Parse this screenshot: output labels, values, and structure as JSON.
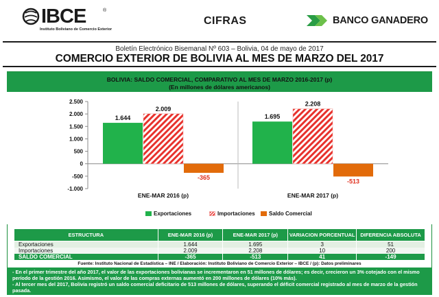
{
  "header": {
    "logo_text": "IBCE",
    "logo_reg": "®",
    "logo_subtitle": "Instituto Boliviano de Comercio Exterior",
    "section": "CIFRAS",
    "bank_name": "BANCO GANADERO"
  },
  "boletin": "Boletín Electrónico Bisemanal Nº 603 – Bolivia, 04 de mayo de 2017",
  "title": "COMERCIO EXTERIOR DE BOLIVIA AL MES DE MARZO DEL 2017",
  "chart_data": {
    "type": "bar",
    "title": "BOLIVIA: SALDO COMERCIAL, COMPARATIVO AL MES DE MARZO 2016-2017 (p)",
    "subtitle": "(En millones de dólares americanos)",
    "categories": [
      "ENE-MAR 2016 (p)",
      "ENE-MAR 2017 (p)"
    ],
    "series": [
      {
        "name": "Exportaciones",
        "values": [
          1644,
          1695
        ],
        "labels": [
          "1.644",
          "1.695"
        ],
        "color": "#21b24b"
      },
      {
        "name": "Importaciones",
        "values": [
          2009,
          2208
        ],
        "labels": [
          "2.009",
          "2.208"
        ],
        "color": "#e8322d",
        "pattern": "hatched"
      },
      {
        "name": "Saldo Comercial",
        "values": [
          -365,
          -513
        ],
        "labels": [
          "-365",
          "-513"
        ],
        "color": "#e26b0a"
      }
    ],
    "yticks": [
      2500,
      2000,
      1500,
      1000,
      500,
      0,
      -500,
      -1000
    ],
    "ytick_labels": [
      "2.500",
      "2.000",
      "1.500",
      "1.000",
      "500",
      "0",
      "-500",
      "-1.000"
    ],
    "ylim": [
      -1000,
      2500
    ],
    "grid": false,
    "legend_position": "bottom"
  },
  "table": {
    "headers": [
      "ESTRUCTURA",
      "ENE-MAR 2016 (p)",
      "ENE-MAR 2017 (p)",
      "VARIACION PORCENTUAL",
      "DIFERENCIA ABSOLUTA"
    ],
    "rows": [
      [
        "Exportaciones",
        "1.644",
        "1.695",
        "3",
        "51"
      ],
      [
        "Importaciones",
        "2.009",
        "2.208",
        "10",
        "200"
      ],
      [
        "SALDO COMERCIAL",
        "-365",
        "-513",
        "41",
        "-149"
      ]
    ]
  },
  "fuente": "Fuente: Instituto Nacional de Estadística – INE / Elaboración: Instituto Boliviano de Comercio Exterior – IBCE / (p): Datos preliminares",
  "notes": [
    "- En el primer trimestre del año 2017, el valor de las exportaciones bolivianas se incrementaron en 51 millones de dólares; es decir, crecieron un 3% cotejado con el mismo período de la gestión 2016. Asimismo, el valor de las compras externas aumentó en 200 millones de dólares (10% más).",
    "- Al tercer mes del 2017, Bolivia registró un saldo comercial deficitario de 513 millones de dólares, superando el déficit comercial registrado al mes de marzo de la gestión pasada."
  ]
}
